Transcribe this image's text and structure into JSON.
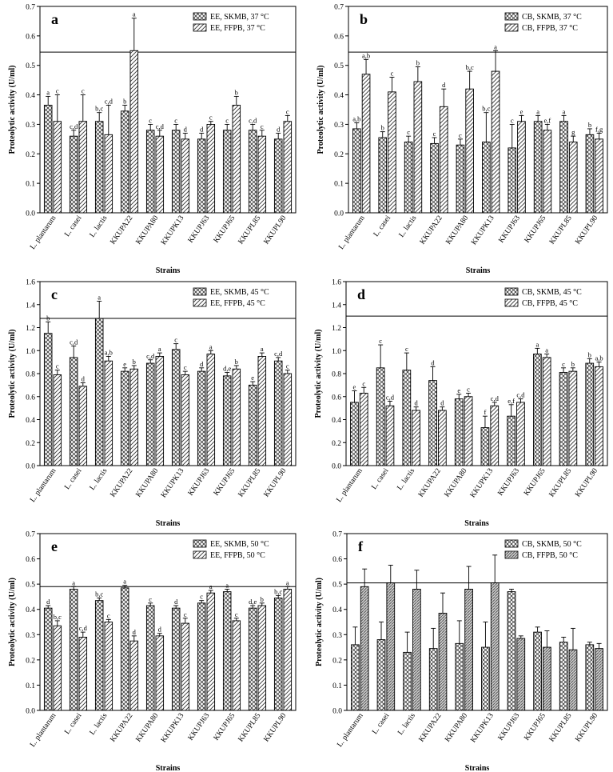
{
  "chart_data": [
    {
      "type": "bar",
      "letter": "a",
      "categories": [
        "L. plantarum",
        "L. casei",
        "L. lactis",
        "KKUPA22",
        "KKUPA80",
        "KKUPK13",
        "KKUPJ63",
        "KKUPJ65",
        "KKUPL85",
        "KKUPL90"
      ],
      "ylim": [
        0,
        0.7
      ],
      "yticks": [
        "0.0",
        "0.1",
        "0.2",
        "0.3",
        "0.4",
        "0.5",
        "0.6",
        "0.7"
      ],
      "ylabel": "Proteolytic activity (U/ml)",
      "xlabel": "Strains",
      "hline": 0.545,
      "legend_position": "top-right",
      "series": [
        {
          "name": "EE, SKMB, 37 °C",
          "pattern": "crosshatch",
          "values": [
            0.365,
            0.26,
            0.31,
            0.345,
            0.28,
            0.28,
            0.25,
            0.28,
            0.28,
            0.25
          ],
          "errors": [
            0.03,
            0.02,
            0.03,
            0.02,
            0.02,
            0.02,
            0.02,
            0.02,
            0.02,
            0.02
          ],
          "letters": [
            "a",
            "c,d",
            "b,c",
            "b",
            "c",
            "c",
            "d",
            "c",
            "c,d",
            "d"
          ]
        },
        {
          "name": "EE, FFPB, 37 °C",
          "pattern": "diagonal",
          "values": [
            0.31,
            0.31,
            0.265,
            0.55,
            0.26,
            0.25,
            0.3,
            0.365,
            0.26,
            0.31
          ],
          "errors": [
            0.09,
            0.09,
            0.1,
            0.11,
            0.02,
            0.02,
            0.01,
            0.03,
            0.02,
            0.02
          ],
          "letters": [
            "c",
            "c",
            "c,d",
            "a",
            "c,d",
            "d",
            "c",
            "b",
            "c",
            "c"
          ]
        }
      ]
    },
    {
      "type": "bar",
      "letter": "b",
      "categories": [
        "L. plantarum",
        "L. casei",
        "L. lactis",
        "KKUPA22",
        "KKUPA80",
        "KKUPK13",
        "KKUPJ63",
        "KKUPJ65",
        "KKUPL85",
        "KKUPL90"
      ],
      "ylim": [
        0,
        0.7
      ],
      "yticks": [
        "0.0",
        "0.1",
        "0.2",
        "0.3",
        "0.4",
        "0.5",
        "0.6",
        "0.7"
      ],
      "ylabel": "Proteolytic activity (U/ml)",
      "xlabel": "Strains",
      "hline": 0.545,
      "legend_position": "top-right",
      "series": [
        {
          "name": "CB, SKMB, 37 °C",
          "pattern": "crosshatch",
          "values": [
            0.285,
            0.255,
            0.24,
            0.235,
            0.23,
            0.24,
            0.22,
            0.31,
            0.31,
            0.265
          ],
          "errors": [
            0.02,
            0.02,
            0.02,
            0.02,
            0.02,
            0.1,
            0.08,
            0.02,
            0.02,
            0.02
          ],
          "letters": [
            "a,b",
            "b",
            "c",
            "c",
            "c",
            "b,c",
            "c",
            "a",
            "a",
            "b"
          ]
        },
        {
          "name": "CB, FFPB, 37 °C",
          "pattern": "diagonal",
          "values": [
            0.47,
            0.41,
            0.445,
            0.36,
            0.42,
            0.48,
            0.31,
            0.28,
            0.24,
            0.25
          ],
          "errors": [
            0.05,
            0.05,
            0.05,
            0.06,
            0.06,
            0.07,
            0.02,
            0.02,
            0.02,
            0.02
          ],
          "letters": [
            "a,b",
            "c",
            "b",
            "d",
            "b,c",
            "a",
            "e",
            "e,f",
            "g",
            "f,g"
          ]
        }
      ]
    },
    {
      "type": "bar",
      "letter": "c",
      "categories": [
        "L. plantarum",
        "L. casei",
        "L. lactis",
        "KKUPA22",
        "KKUPA80",
        "KKUPK13",
        "KKUPJ63",
        "KKUPJ65",
        "KKUPL85",
        "KKUPL90"
      ],
      "ylim": [
        0,
        1.6
      ],
      "yticks": [
        "0.0",
        "0.2",
        "0.4",
        "0.6",
        "0.8",
        "1.0",
        "1.2",
        "1.4",
        "1.6"
      ],
      "ylabel": "Proteolytic activity (U/ml)",
      "xlabel": "Strains",
      "hline": 1.28,
      "legend_position": "top-right",
      "series": [
        {
          "name": "EE, SKMB, 45 °C",
          "pattern": "crosshatch",
          "values": [
            1.15,
            0.94,
            1.28,
            0.82,
            0.89,
            1.01,
            0.82,
            0.78,
            0.7,
            0.91
          ],
          "errors": [
            0.1,
            0.1,
            0.15,
            0.03,
            0.03,
            0.05,
            0.03,
            0.03,
            0.03,
            0.03
          ],
          "letters": [
            "b",
            "c,d",
            "a",
            "e",
            "c,d",
            "c",
            "d",
            "d,e",
            "e",
            "c,d"
          ]
        },
        {
          "name": "EE, FFPB, 45 °C",
          "pattern": "diagonal",
          "values": [
            0.79,
            0.69,
            0.91,
            0.84,
            0.95,
            0.79,
            0.97,
            0.84,
            0.95,
            0.8
          ],
          "errors": [
            0.04,
            0.03,
            0.04,
            0.03,
            0.03,
            0.03,
            0.03,
            0.03,
            0.03,
            0.03
          ],
          "letters": [
            "c",
            "d",
            "a,b",
            "b",
            "a",
            "c",
            "a",
            "b",
            "a",
            "c"
          ]
        }
      ]
    },
    {
      "type": "bar",
      "letter": "d",
      "categories": [
        "L. plantarum",
        "L. casei",
        "L. lactis",
        "KKUPA22",
        "KKUPA80",
        "KKUPK13",
        "KKUPJ63",
        "KKUPJ65",
        "KKUPL85",
        "KKUPL90"
      ],
      "ylim": [
        0,
        1.6
      ],
      "yticks": [
        "0.0",
        "0.2",
        "0.4",
        "0.6",
        "0.8",
        "1.0",
        "1.2",
        "1.4",
        "1.6"
      ],
      "ylabel": "Proteolytic activity (U/ml)",
      "xlabel": "Strains",
      "hline": 1.3,
      "legend_position": "top-right",
      "series": [
        {
          "name": "CB, SKMB, 45 °C",
          "pattern": "crosshatch",
          "values": [
            0.55,
            0.85,
            0.83,
            0.74,
            0.58,
            0.33,
            0.43,
            0.97,
            0.81,
            0.89
          ],
          "errors": [
            0.1,
            0.2,
            0.15,
            0.12,
            0.04,
            0.1,
            0.1,
            0.05,
            0.04,
            0.04
          ],
          "letters": [
            "e",
            "c",
            "c",
            "d",
            "e",
            "f",
            "e,f",
            "a",
            "c",
            "b"
          ]
        },
        {
          "name": "CB, FFPB, 45 °C",
          "pattern": "diagonal",
          "values": [
            0.63,
            0.52,
            0.48,
            0.48,
            0.6,
            0.52,
            0.55,
            0.94,
            0.82,
            0.86
          ],
          "errors": [
            0.05,
            0.04,
            0.03,
            0.03,
            0.03,
            0.03,
            0.03,
            0.03,
            0.03,
            0.04
          ],
          "letters": [
            "c",
            "c,d",
            "d",
            "d",
            "c",
            "c,d",
            "c,d",
            "a",
            "b",
            "a,b"
          ]
        }
      ]
    },
    {
      "type": "bar",
      "letter": "e",
      "categories": [
        "L. plantarum",
        "L. casei",
        "L. lactis",
        "KKUPA22",
        "KKUPA80",
        "KKUPK13",
        "KKUPJ63",
        "KKUPJ65",
        "KKUPL85",
        "KKUPL90"
      ],
      "ylim": [
        0,
        0.7
      ],
      "yticks": [
        "0.0",
        "0.1",
        "0.2",
        "0.3",
        "0.4",
        "0.5",
        "0.6",
        "0.7"
      ],
      "ylabel": "Proteolytic activity (U/ml)",
      "xlabel": "Strains",
      "hline": 0.49,
      "legend_position": "top-right",
      "series": [
        {
          "name": "EE, SKMB, 50 °C",
          "pattern": "crosshatch",
          "values": [
            0.405,
            0.48,
            0.435,
            0.485,
            0.415,
            0.405,
            0.425,
            0.47,
            0.405,
            0.445
          ],
          "errors": [
            0.01,
            0.01,
            0.01,
            0.01,
            0.01,
            0.01,
            0.01,
            0.01,
            0.01,
            0.01
          ],
          "letters": [
            "d",
            "a",
            "b,c",
            "a",
            "c",
            "d",
            "c",
            "a",
            "d,e",
            "b,c"
          ]
        },
        {
          "name": "EE, FFPB, 50 °C",
          "pattern": "diagonal",
          "values": [
            0.335,
            0.29,
            0.35,
            0.275,
            0.295,
            0.345,
            0.465,
            0.355,
            0.415,
            0.48
          ],
          "errors": [
            0.02,
            0.02,
            0.01,
            0.02,
            0.01,
            0.02,
            0.01,
            0.01,
            0.01,
            0.01
          ],
          "letters": [
            "b,c",
            "c,d",
            "c",
            "d",
            "d",
            "c",
            "a",
            "c",
            "b",
            "a"
          ]
        }
      ]
    },
    {
      "type": "bar",
      "letter": "f",
      "categories": [
        "L. plantarum",
        "L. casei",
        "L. lactis",
        "KKUPA22",
        "KKUPA80",
        "KKUPK13",
        "KKUPJ63",
        "KKUPJ65",
        "KKUPL85",
        "KKUPL90"
      ],
      "ylim": [
        0,
        0.7
      ],
      "yticks": [
        "0.0",
        "0.1",
        "0.2",
        "0.3",
        "0.4",
        "0.5",
        "0.6",
        "0.7"
      ],
      "ylabel": "Proteolytic activity (U/ml)",
      "xlabel": "Strains",
      "hline": 0.505,
      "legend_position": "top-right",
      "series": [
        {
          "name": "CB, SKMB, 50 °C",
          "pattern": "crosshatch",
          "values": [
            0.26,
            0.28,
            0.23,
            0.245,
            0.265,
            0.25,
            0.47,
            0.31,
            0.27,
            0.26
          ],
          "errors": [
            0.07,
            0.07,
            0.08,
            0.08,
            0.09,
            0.1,
            0.01,
            0.02,
            0.02,
            0.01
          ],
          "letters": [
            "",
            "",
            "",
            "",
            "",
            "",
            "",
            "",
            "",
            ""
          ]
        },
        {
          "name": "CB, FFPB, 50 °C",
          "pattern": "dense-diagonal",
          "values": [
            0.49,
            0.505,
            0.48,
            0.385,
            0.48,
            0.505,
            0.285,
            0.25,
            0.24,
            0.245
          ],
          "errors": [
            0.07,
            0.07,
            0.075,
            0.08,
            0.09,
            0.11,
            0.01,
            0.065,
            0.085,
            0.02
          ],
          "letters": [
            "",
            "",
            "",
            "",
            "",
            "",
            "",
            "",
            "",
            ""
          ]
        }
      ]
    }
  ]
}
